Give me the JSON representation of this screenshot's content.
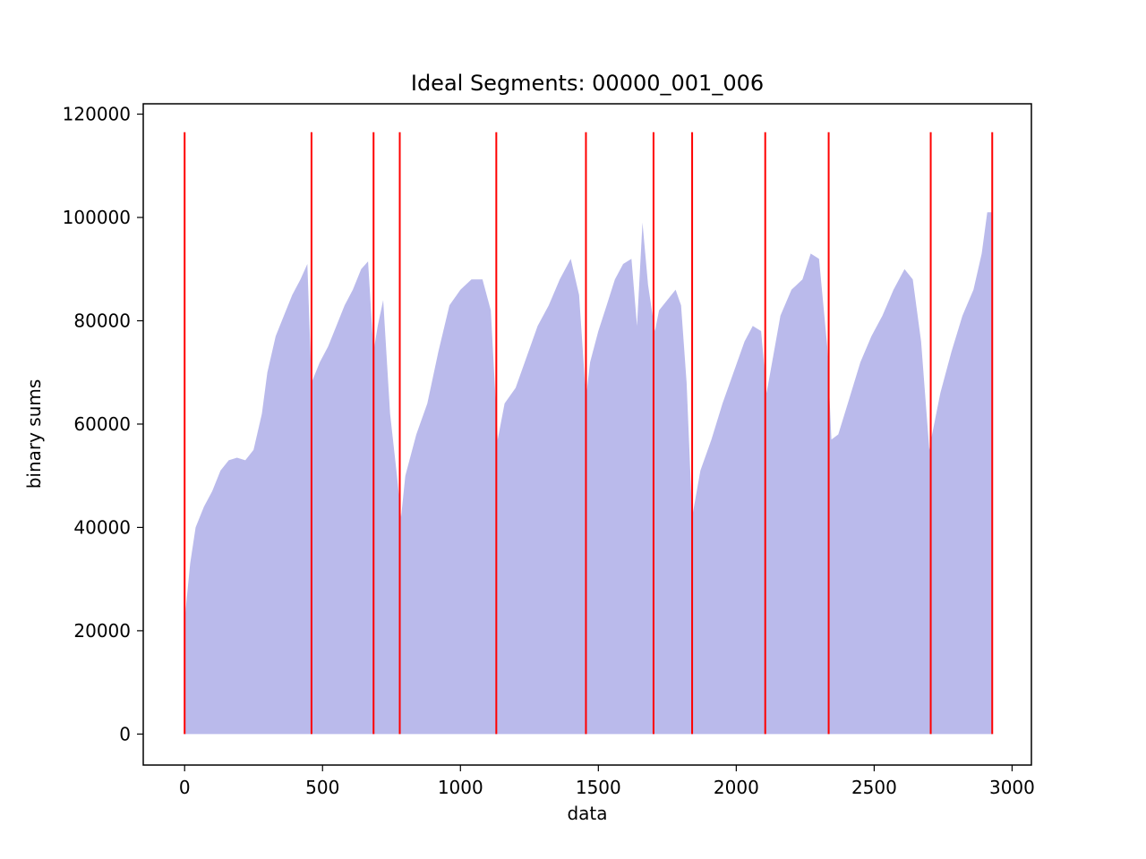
{
  "chart_data": {
    "type": "area",
    "title": "Ideal Segments: 00000_001_006",
    "xlabel": "data",
    "ylabel": "binary sums",
    "xlim": [
      -150,
      3070
    ],
    "ylim": [
      -6000,
      122000
    ],
    "xticks": [
      0,
      500,
      1000,
      1500,
      2000,
      2500,
      3000
    ],
    "yticks": [
      0,
      20000,
      40000,
      60000,
      80000,
      100000,
      120000
    ],
    "colors": {
      "fill": "#babaeb",
      "segment_line": "#ff0000",
      "axes": "#000000"
    },
    "series": [
      {
        "fill": "to-zero",
        "points": [
          [
            0,
            22000
          ],
          [
            20,
            33000
          ],
          [
            40,
            40000
          ],
          [
            70,
            44000
          ],
          [
            100,
            47000
          ],
          [
            130,
            51000
          ],
          [
            160,
            53000
          ],
          [
            190,
            53500
          ],
          [
            220,
            53000
          ],
          [
            250,
            55000
          ],
          [
            280,
            62000
          ],
          [
            300,
            70000
          ],
          [
            330,
            77000
          ],
          [
            360,
            81000
          ],
          [
            390,
            85000
          ],
          [
            420,
            88000
          ],
          [
            445,
            91000
          ],
          [
            460,
            68000
          ],
          [
            490,
            72000
          ],
          [
            520,
            75000
          ],
          [
            550,
            79000
          ],
          [
            580,
            83000
          ],
          [
            610,
            86000
          ],
          [
            640,
            90000
          ],
          [
            665,
            91500
          ],
          [
            685,
            74000
          ],
          [
            700,
            79000
          ],
          [
            720,
            84000
          ],
          [
            745,
            62000
          ],
          [
            770,
            50000
          ],
          [
            785,
            42000
          ],
          [
            800,
            50000
          ],
          [
            840,
            58000
          ],
          [
            880,
            64000
          ],
          [
            920,
            74000
          ],
          [
            960,
            83000
          ],
          [
            1000,
            86000
          ],
          [
            1040,
            88000
          ],
          [
            1080,
            88000
          ],
          [
            1110,
            82000
          ],
          [
            1135,
            57000
          ],
          [
            1160,
            64000
          ],
          [
            1200,
            67000
          ],
          [
            1240,
            73000
          ],
          [
            1280,
            79000
          ],
          [
            1320,
            83000
          ],
          [
            1360,
            88000
          ],
          [
            1400,
            92000
          ],
          [
            1430,
            85000
          ],
          [
            1455,
            65000
          ],
          [
            1470,
            72000
          ],
          [
            1500,
            78000
          ],
          [
            1530,
            83000
          ],
          [
            1560,
            88000
          ],
          [
            1590,
            91000
          ],
          [
            1620,
            92000
          ],
          [
            1640,
            79000
          ],
          [
            1660,
            99000
          ],
          [
            1680,
            87000
          ],
          [
            1705,
            78000
          ],
          [
            1720,
            82000
          ],
          [
            1750,
            84000
          ],
          [
            1780,
            86000
          ],
          [
            1800,
            83000
          ],
          [
            1820,
            68000
          ],
          [
            1840,
            42000
          ],
          [
            1870,
            51000
          ],
          [
            1910,
            57000
          ],
          [
            1950,
            64000
          ],
          [
            1990,
            70000
          ],
          [
            2030,
            76000
          ],
          [
            2060,
            79000
          ],
          [
            2090,
            78000
          ],
          [
            2110,
            66000
          ],
          [
            2130,
            72000
          ],
          [
            2160,
            81000
          ],
          [
            2200,
            86000
          ],
          [
            2240,
            88000
          ],
          [
            2270,
            93000
          ],
          [
            2300,
            92000
          ],
          [
            2330,
            75000
          ],
          [
            2345,
            57000
          ],
          [
            2370,
            58000
          ],
          [
            2410,
            65000
          ],
          [
            2450,
            72000
          ],
          [
            2490,
            77000
          ],
          [
            2530,
            81000
          ],
          [
            2570,
            86000
          ],
          [
            2610,
            90000
          ],
          [
            2640,
            88000
          ],
          [
            2670,
            76000
          ],
          [
            2700,
            55000
          ],
          [
            2710,
            58000
          ],
          [
            2740,
            66000
          ],
          [
            2780,
            74000
          ],
          [
            2820,
            81000
          ],
          [
            2860,
            86000
          ],
          [
            2890,
            93000
          ],
          [
            2910,
            101000
          ],
          [
            2928,
            101000
          ]
        ]
      }
    ],
    "segment_lines": {
      "x": [
        0,
        460,
        685,
        780,
        1130,
        1455,
        1700,
        1840,
        2105,
        2335,
        2705,
        2928
      ],
      "ymin": 0,
      "ymax": 116500
    }
  }
}
